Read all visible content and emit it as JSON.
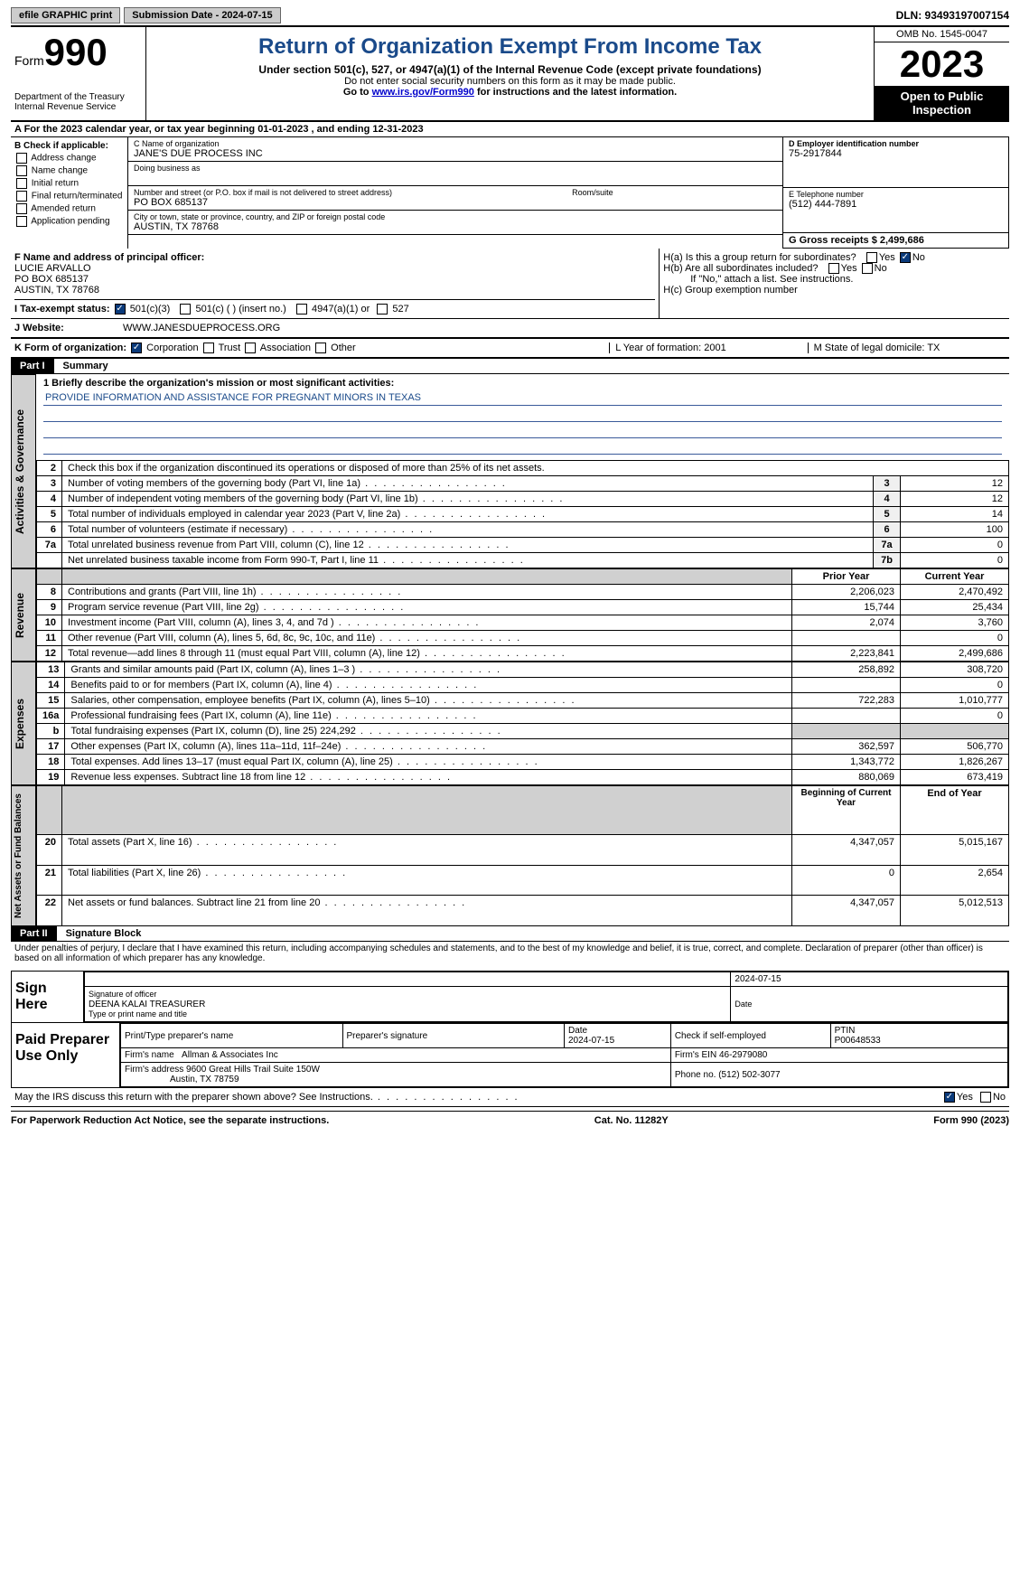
{
  "topbar": {
    "efile": "efile GRAPHIC print",
    "submission": "Submission Date - 2024-07-15",
    "dln": "DLN: 93493197007154"
  },
  "header": {
    "form_label": "Form",
    "form_no": "990",
    "dept": "Department of the Treasury Internal Revenue Service",
    "title": "Return of Organization Exempt From Income Tax",
    "subtitle": "Under section 501(c), 527, or 4947(a)(1) of the Internal Revenue Code (except private foundations)",
    "note1": "Do not enter social security numbers on this form as it may be made public.",
    "note2_pre": "Go to ",
    "note2_link": "www.irs.gov/Form990",
    "note2_post": " for instructions and the latest information.",
    "omb": "OMB No. 1545-0047",
    "year": "2023",
    "inspect": "Open to Public Inspection"
  },
  "row_a": "A For the 2023 calendar year, or tax year beginning 01-01-2023   , and ending 12-31-2023",
  "box_b": {
    "label": "B Check if applicable:",
    "items": [
      "Address change",
      "Name change",
      "Initial return",
      "Final return/terminated",
      "Amended return",
      "Application pending"
    ]
  },
  "box_c": {
    "name_lbl": "C Name of organization",
    "name": "JANE'S DUE PROCESS INC",
    "dba_lbl": "Doing business as",
    "addr_lbl": "Number and street (or P.O. box if mail is not delivered to street address)",
    "room_lbl": "Room/suite",
    "addr": "PO BOX 685137",
    "city_lbl": "City or town, state or province, country, and ZIP or foreign postal code",
    "city": "AUSTIN, TX  78768"
  },
  "box_d": {
    "lbl": "D Employer identification number",
    "val": "75-2917844"
  },
  "box_e": {
    "lbl": "E Telephone number",
    "val": "(512) 444-7891"
  },
  "box_g": {
    "lbl": "G Gross receipts $ 2,499,686"
  },
  "box_f": {
    "lbl": "F  Name and address of principal officer:",
    "l1": "LUCIE ARVALLO",
    "l2": "PO BOX 685137",
    "l3": "AUSTIN, TX  78768"
  },
  "box_h": {
    "ha_lbl": "H(a)  Is this a group return for subordinates?",
    "hb_lbl": "H(b)  Are all subordinates included?",
    "hb_note": "If \"No,\" attach a list. See instructions.",
    "hc_lbl": "H(c)  Group exemption number"
  },
  "tax_exempt": {
    "lbl": "I    Tax-exempt status:",
    "o1": "501(c)(3)",
    "o2": "501(c) (  ) (insert no.)",
    "o3": "4947(a)(1) or",
    "o4": "527"
  },
  "website": {
    "lbl": "J   Website:",
    "val": "WWW.JANESDUEPROCESS.ORG"
  },
  "row_k": {
    "k_lbl": "K Form of organization:",
    "k_opts": [
      "Corporation",
      "Trust",
      "Association",
      "Other"
    ],
    "l": "L Year of formation: 2001",
    "m": "M State of legal domicile: TX"
  },
  "part1": {
    "hdr": "Part I",
    "title": "Summary",
    "line1_lbl": "1  Briefly describe the organization's mission or most significant activities:",
    "line1_val": "PROVIDE INFORMATION AND ASSISTANCE FOR PREGNANT MINORS IN TEXAS",
    "line2": "Check this box      if the organization discontinued its operations or disposed of more than 25% of its net assets.",
    "vtabs": [
      "Activities & Governance",
      "Revenue",
      "Expenses",
      "Net Assets or Fund Balances"
    ],
    "gov_rows": [
      {
        "n": "3",
        "t": "Number of voting members of the governing body (Part VI, line 1a)",
        "b": "3",
        "v": "12"
      },
      {
        "n": "4",
        "t": "Number of independent voting members of the governing body (Part VI, line 1b)",
        "b": "4",
        "v": "12"
      },
      {
        "n": "5",
        "t": "Total number of individuals employed in calendar year 2023 (Part V, line 2a)",
        "b": "5",
        "v": "14"
      },
      {
        "n": "6",
        "t": "Total number of volunteers (estimate if necessary)",
        "b": "6",
        "v": "100"
      },
      {
        "n": "7a",
        "t": "Total unrelated business revenue from Part VIII, column (C), line 12",
        "b": "7a",
        "v": "0"
      },
      {
        "n": "",
        "t": "Net unrelated business taxable income from Form 990-T, Part I, line 11",
        "b": "7b",
        "v": "0"
      }
    ],
    "pycy_hdr": {
      "py": "Prior Year",
      "cy": "Current Year"
    },
    "rev_rows": [
      {
        "n": "8",
        "t": "Contributions and grants (Part VIII, line 1h)",
        "py": "2,206,023",
        "cy": "2,470,492"
      },
      {
        "n": "9",
        "t": "Program service revenue (Part VIII, line 2g)",
        "py": "15,744",
        "cy": "25,434"
      },
      {
        "n": "10",
        "t": "Investment income (Part VIII, column (A), lines 3, 4, and 7d )",
        "py": "2,074",
        "cy": "3,760"
      },
      {
        "n": "11",
        "t": "Other revenue (Part VIII, column (A), lines 5, 6d, 8c, 9c, 10c, and 11e)",
        "py": "",
        "cy": "0"
      },
      {
        "n": "12",
        "t": "Total revenue—add lines 8 through 11 (must equal Part VIII, column (A), line 12)",
        "py": "2,223,841",
        "cy": "2,499,686"
      }
    ],
    "exp_rows": [
      {
        "n": "13",
        "t": "Grants and similar amounts paid (Part IX, column (A), lines 1–3 )",
        "py": "258,892",
        "cy": "308,720"
      },
      {
        "n": "14",
        "t": "Benefits paid to or for members (Part IX, column (A), line 4)",
        "py": "",
        "cy": "0"
      },
      {
        "n": "15",
        "t": "Salaries, other compensation, employee benefits (Part IX, column (A), lines 5–10)",
        "py": "722,283",
        "cy": "1,010,777"
      },
      {
        "n": "16a",
        "t": "Professional fundraising fees (Part IX, column (A), line 11e)",
        "py": "",
        "cy": "0"
      },
      {
        "n": "b",
        "t": "Total fundraising expenses (Part IX, column (D), line 25) 224,292",
        "py": "SHADE",
        "cy": "SHADE"
      },
      {
        "n": "17",
        "t": "Other expenses (Part IX, column (A), lines 11a–11d, 11f–24e)",
        "py": "362,597",
        "cy": "506,770"
      },
      {
        "n": "18",
        "t": "Total expenses. Add lines 13–17 (must equal Part IX, column (A), line 25)",
        "py": "1,343,772",
        "cy": "1,826,267"
      },
      {
        "n": "19",
        "t": "Revenue less expenses. Subtract line 18 from line 12",
        "py": "880,069",
        "cy": "673,419"
      }
    ],
    "na_hdr": {
      "b": "Beginning of Current Year",
      "e": "End of Year"
    },
    "na_rows": [
      {
        "n": "20",
        "t": "Total assets (Part X, line 16)",
        "py": "4,347,057",
        "cy": "5,015,167"
      },
      {
        "n": "21",
        "t": "Total liabilities (Part X, line 26)",
        "py": "0",
        "cy": "2,654"
      },
      {
        "n": "22",
        "t": "Net assets or fund balances. Subtract line 21 from line 20",
        "py": "4,347,057",
        "cy": "5,012,513"
      }
    ]
  },
  "part2": {
    "hdr": "Part II",
    "title": "Signature Block",
    "decl": "Under penalties of perjury, I declare that I have examined this return, including accompanying schedules and statements, and to the best of my knowledge and belief, it is true, correct, and complete. Declaration of preparer (other than officer) is based on all information of which preparer has any knowledge."
  },
  "sign": {
    "here": "Sign Here",
    "sig_off": "Signature of officer",
    "date": "Date",
    "date_val": "2024-07-15",
    "name": "DEENA KALAI TREASURER",
    "name_lbl": "Type or print name and title"
  },
  "prep": {
    "lbl": "Paid Preparer Use Only",
    "h1": "Print/Type preparer's name",
    "h2": "Preparer's signature",
    "h3": "Date",
    "h3v": "2024-07-15",
    "h4": "Check       if self-employed",
    "h5": "PTIN",
    "h5v": "P00648533",
    "firm_lbl": "Firm's name",
    "firm": "Allman & Associates Inc",
    "ein_lbl": "Firm's EIN",
    "ein": "46-2979080",
    "addr_lbl": "Firm's address",
    "addr1": "9600 Great Hills Trail Suite 150W",
    "addr2": "Austin, TX  78759",
    "phone_lbl": "Phone no.",
    "phone": "(512) 502-3077"
  },
  "discuss": "May the IRS discuss this return with the preparer shown above? See Instructions.",
  "footer": {
    "l": "For Paperwork Reduction Act Notice, see the separate instructions.",
    "c": "Cat. No. 11282Y",
    "r": "Form 990 (2023)"
  },
  "colors": {
    "link": "#0000cc",
    "title": "#1a4a8a",
    "black": "#000000",
    "shade": "#d0d0d0"
  }
}
